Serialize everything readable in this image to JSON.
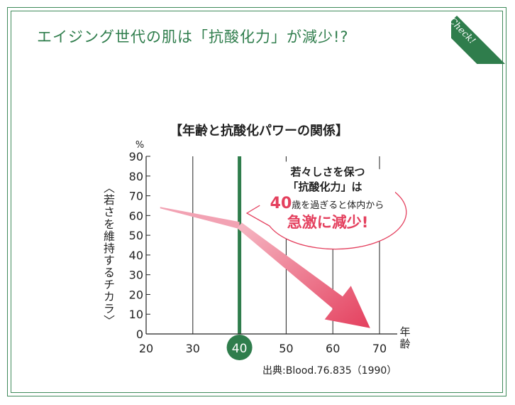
{
  "page": {
    "heading": "エイジング世代の肌は「抗酸化力」が減少!?",
    "badge": "Check!",
    "accent_color": "#2f7d4c",
    "arrow_color": "#e4405e"
  },
  "chart_data": {
    "type": "line",
    "title": "【年齢と抗酸化パワーの関係】",
    "ylabel": "〈若さを維持するチカラ〉",
    "yunit": "%",
    "xlabel": "年齢",
    "ylim": [
      0,
      90
    ],
    "yticks": [
      "0",
      "10",
      "20",
      "30",
      "40",
      "50",
      "60",
      "70",
      "80",
      "90"
    ],
    "xlim": [
      20,
      70
    ],
    "xticks": [
      "20",
      "30",
      "40",
      "50",
      "60",
      "70"
    ],
    "highlight_x": 40,
    "series": [
      {
        "x": [
          23,
          40,
          68
        ],
        "y": [
          64,
          55,
          3
        ]
      }
    ],
    "callout": {
      "line1": "若々しさを保つ",
      "line2": "「抗酸化力」は",
      "line3_num": "40",
      "line3_rest": "歳を過ぎると体内から",
      "line4": "急激に減少!"
    },
    "source": "出典:Blood.76.835（1990）"
  }
}
